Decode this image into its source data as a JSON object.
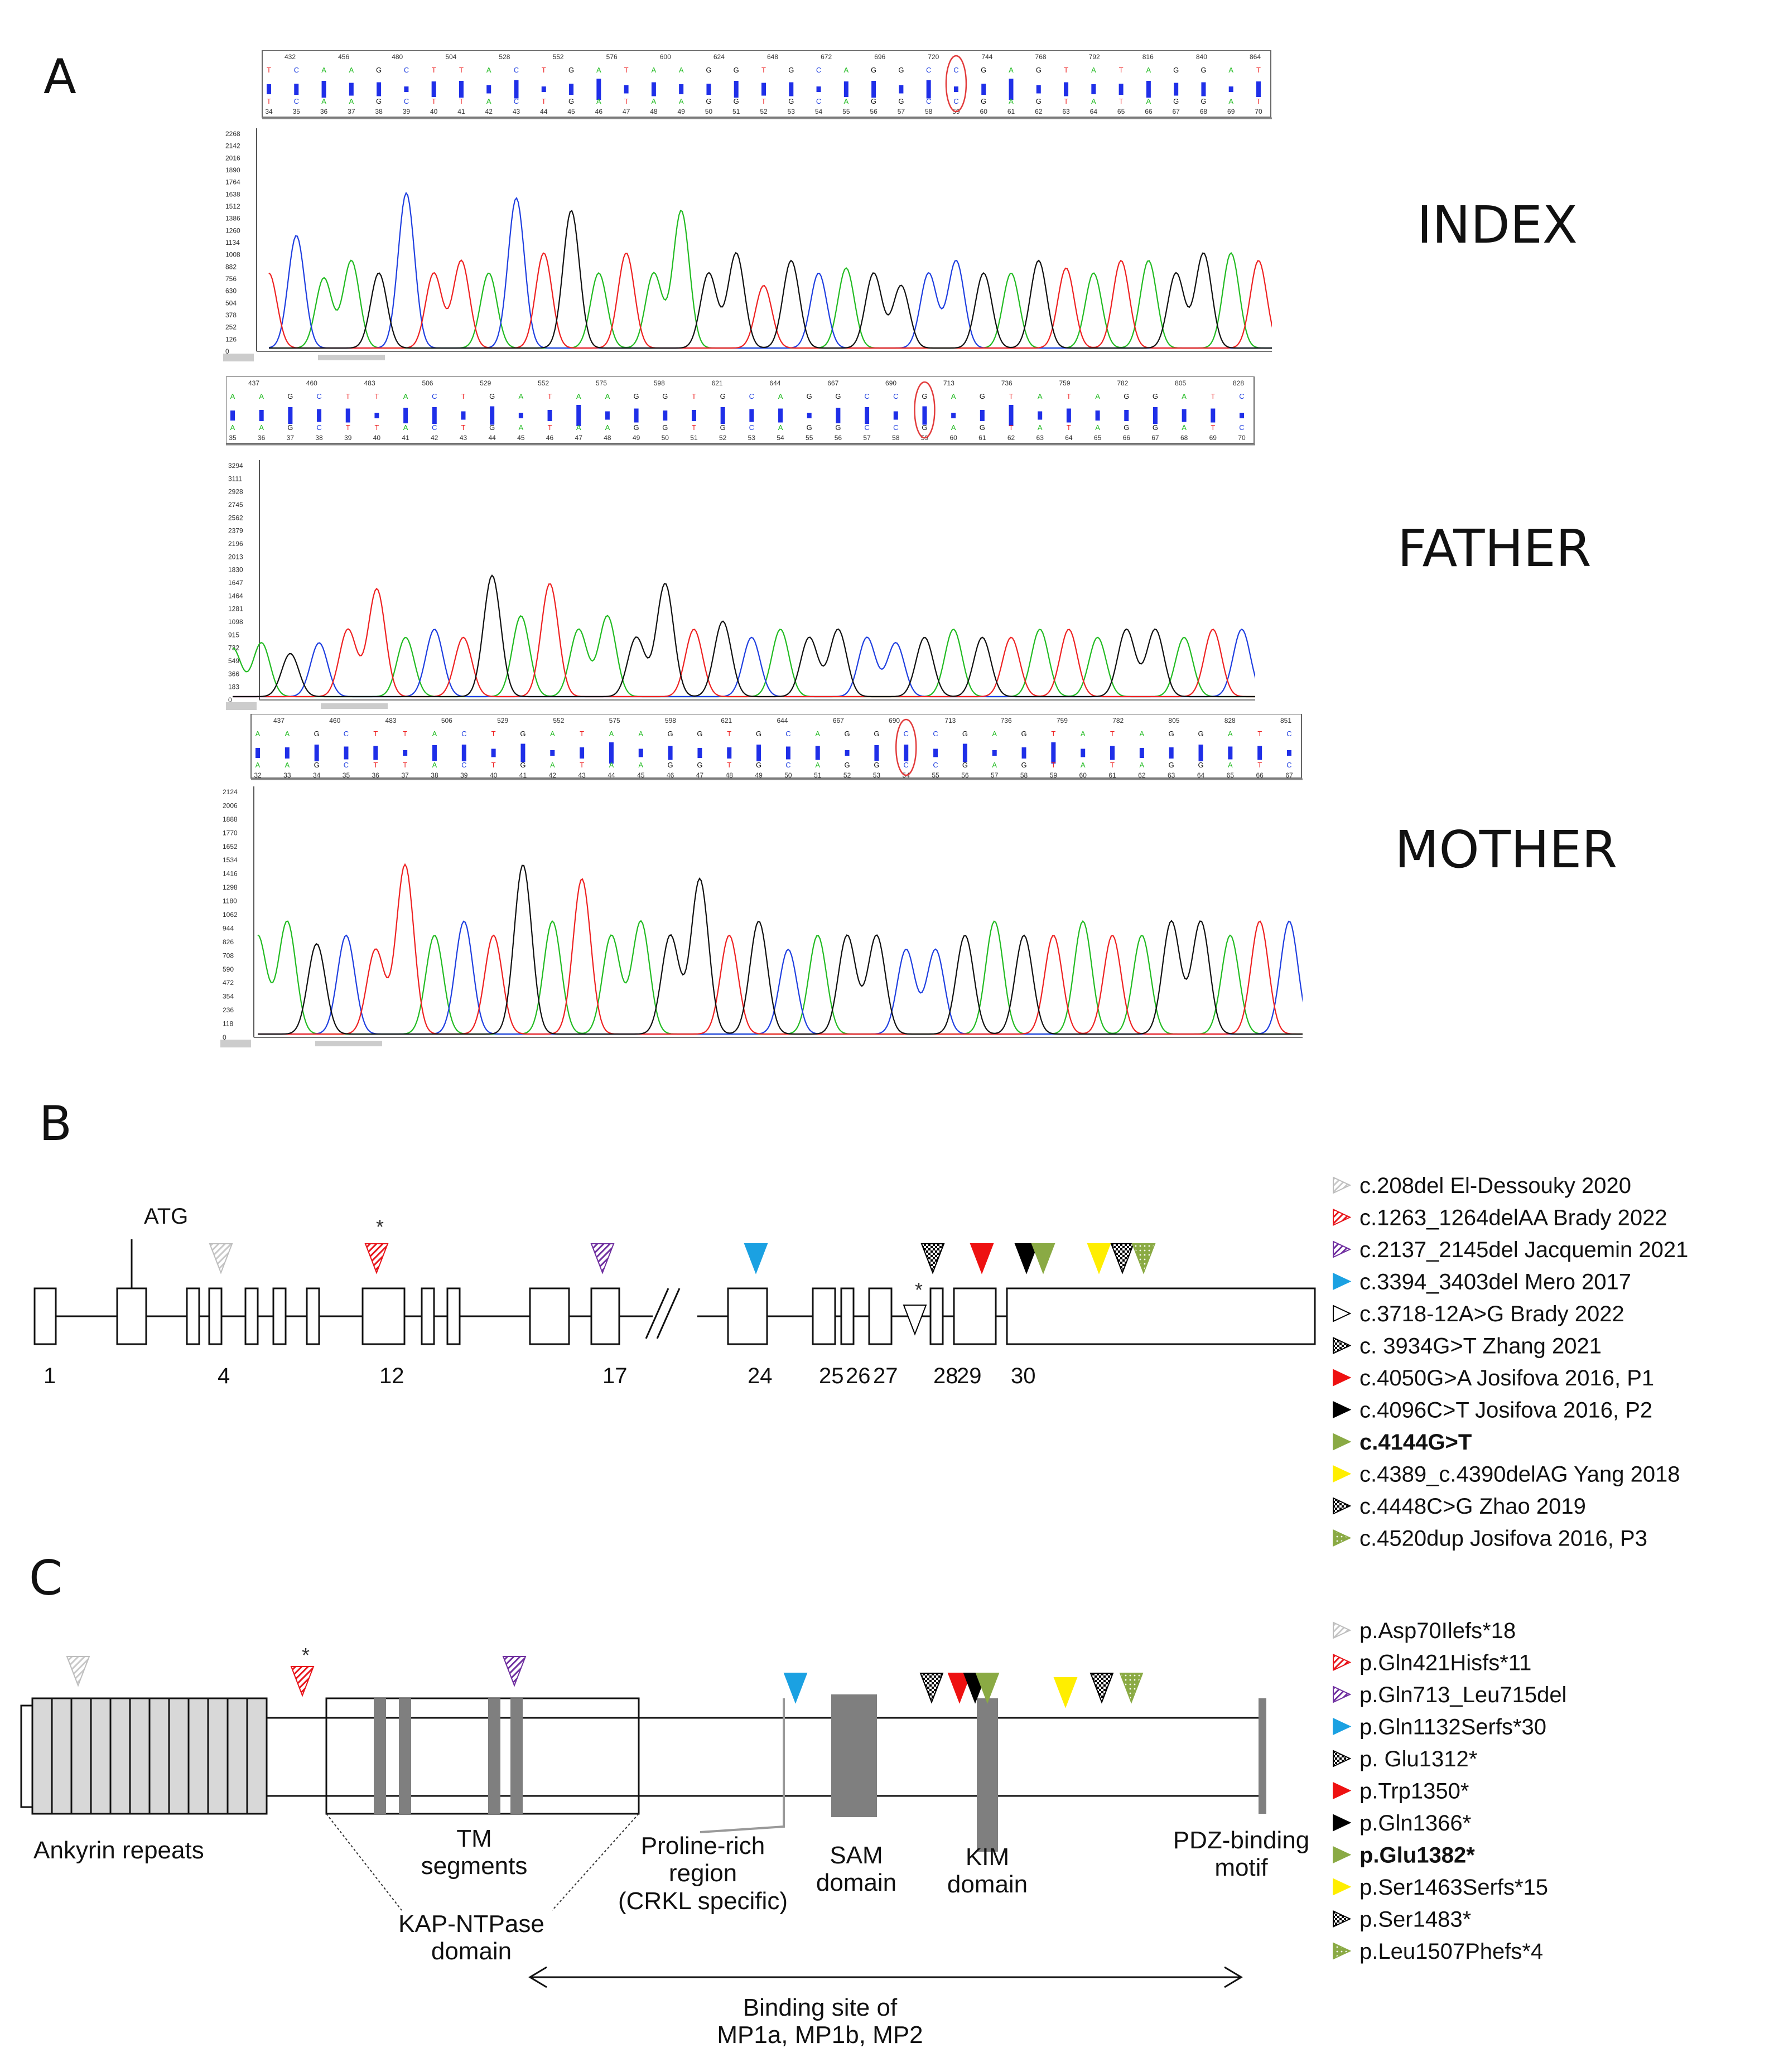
{
  "panels": {
    "a": "A",
    "b": "B",
    "c": "C"
  },
  "samples": [
    "INDEX",
    "FATHER",
    "MOTHER"
  ],
  "chromatograms": [
    {
      "name": "INDEX",
      "positions": [
        "432",
        "456",
        "480",
        "504",
        "528",
        "552",
        "576",
        "600",
        "624",
        "648",
        "672",
        "696",
        "720",
        "744",
        "768",
        "792",
        "816",
        "840",
        "864"
      ],
      "bases": "TCAAGCTTACTGATAAGGTGCAGGCCGAGTATAGGAT",
      "numbers": [
        "34",
        "35",
        "36",
        "37",
        "38",
        "39",
        "40",
        "41",
        "42",
        "43",
        "44",
        "45",
        "46",
        "47",
        "48",
        "49",
        "50",
        "51",
        "52",
        "53",
        "54",
        "55",
        "56",
        "57",
        "58",
        "59",
        "60",
        "61",
        "62",
        "63",
        "64",
        "65",
        "66",
        "67",
        "68",
        "69",
        "70"
      ],
      "yticks": [
        "2268",
        "2142",
        "2016",
        "1890",
        "1764",
        "1638",
        "1512",
        "1386",
        "1260",
        "1134",
        "1008",
        "882",
        "756",
        "630",
        "504",
        "378",
        "252",
        "126",
        "0"
      ]
    },
    {
      "name": "FATHER",
      "positions": [
        "437",
        "460",
        "483",
        "506",
        "529",
        "552",
        "575",
        "598",
        "621",
        "644",
        "667",
        "690",
        "713",
        "736",
        "759",
        "782",
        "805",
        "828"
      ],
      "bases": "AAGCTTACTGATAAGGTGCAGGCCGAGTATAGGATC",
      "numbers": [
        "35",
        "36",
        "37",
        "38",
        "39",
        "40",
        "41",
        "42",
        "43",
        "44",
        "45",
        "46",
        "47",
        "48",
        "49",
        "50",
        "51",
        "52",
        "53",
        "54",
        "55",
        "56",
        "57",
        "58",
        "59",
        "60",
        "61",
        "62",
        "63",
        "64",
        "65",
        "66",
        "67",
        "68",
        "69",
        "70"
      ],
      "yticks": [
        "3294",
        "3111",
        "2928",
        "2745",
        "2562",
        "2379",
        "2196",
        "2013",
        "1830",
        "1647",
        "1464",
        "1281",
        "1098",
        "915",
        "732",
        "549",
        "366",
        "183",
        "0"
      ]
    },
    {
      "name": "MOTHER",
      "positions": [
        "437",
        "460",
        "483",
        "506",
        "529",
        "552",
        "575",
        "598",
        "621",
        "644",
        "667",
        "690",
        "713",
        "736",
        "759",
        "782",
        "805",
        "828",
        "851"
      ],
      "bases": "AAGCTTACTGATAAGGTGCAGGCCGAGTATAGGATC",
      "numbers": [
        "32",
        "33",
        "34",
        "35",
        "36",
        "37",
        "38",
        "39",
        "40",
        "41",
        "42",
        "43",
        "44",
        "45",
        "46",
        "47",
        "48",
        "49",
        "50",
        "51",
        "52",
        "53",
        "54",
        "55",
        "56",
        "57",
        "58",
        "59",
        "60",
        "61",
        "62",
        "63",
        "64",
        "65",
        "66",
        "67"
      ],
      "yticks": [
        "2124",
        "2006",
        "1888",
        "1770",
        "1652",
        "1534",
        "1416",
        "1298",
        "1180",
        "1062",
        "944",
        "826",
        "708",
        "590",
        "472",
        "354",
        "236",
        "118",
        "0"
      ]
    }
  ],
  "gene": {
    "atg": "ATG",
    "exon_numbers": [
      "1",
      "4",
      "12",
      "17",
      "24",
      "25",
      "26",
      "27",
      "28",
      "29",
      "30"
    ],
    "asterisk": "*"
  },
  "legend_b": [
    {
      "text": "c.208del El-Dessouky 2020",
      "color": "#d9d9d9",
      "style": "hatch",
      "bold": false
    },
    {
      "text": "c.1263_1264delAA Brady 2022",
      "color": "#e8151b",
      "style": "hatch",
      "bold": false
    },
    {
      "text": "c.2137_2145del Jacquemin 2021",
      "color": "#7030a0",
      "style": "hatch",
      "bold": false
    },
    {
      "text": "c.3394_3403del Mero 2017",
      "color": "#1ba1e2",
      "style": "solid",
      "bold": false
    },
    {
      "text": "c.3718-12A>G Brady 2022",
      "color": "#000000",
      "style": "outline",
      "bold": false
    },
    {
      "text": "c. 3934G>T Zhang 2021",
      "color": "#000000",
      "style": "check",
      "bold": false
    },
    {
      "text": "c.4050G>A Josifova 2016, P1",
      "color": "#ee1111",
      "style": "solid",
      "bold": false
    },
    {
      "text": "c.4096C>T Josifova 2016, P2",
      "color": "#000000",
      "style": "solid",
      "bold": false
    },
    {
      "text": "c.4144G>T",
      "color": "#8aaa44",
      "style": "solid",
      "bold": true
    },
    {
      "text": "c.4389_c.4390delAG Yang 2018",
      "color": "#ffee00",
      "style": "solid",
      "bold": false
    },
    {
      "text": "c.4448C>G Zhao 2019",
      "color": "#000000",
      "style": "check",
      "bold": false
    },
    {
      "text": "c.4520dup Josifova 2016, P3",
      "color": "#8aaa44",
      "style": "dots",
      "bold": false
    }
  ],
  "legend_c": [
    {
      "text": "p.Asp70Ilefs*18",
      "color": "#d9d9d9",
      "style": "hatch",
      "bold": false
    },
    {
      "text": "p.Gln421Hisfs*11",
      "color": "#e8151b",
      "style": "hatch",
      "bold": false
    },
    {
      "text": "p.Gln713_Leu715del",
      "color": "#7030a0",
      "style": "hatch",
      "bold": false
    },
    {
      "text": "p.Gln1132Serfs*30",
      "color": "#1ba1e2",
      "style": "solid",
      "bold": false
    },
    {
      "text": "p. Glu1312*",
      "color": "#000000",
      "style": "check",
      "bold": false
    },
    {
      "text": "p.Trp1350*",
      "color": "#ee1111",
      "style": "solid",
      "bold": false
    },
    {
      "text": "p.Gln1366*",
      "color": "#000000",
      "style": "solid",
      "bold": false
    },
    {
      "text": "p.Glu1382*",
      "color": "#8aaa44",
      "style": "solid",
      "bold": true
    },
    {
      "text": "p.Ser1463Serfs*15",
      "color": "#ffee00",
      "style": "solid",
      "bold": false
    },
    {
      "text": "p.Ser1483*",
      "color": "#000000",
      "style": "check",
      "bold": false
    },
    {
      "text": "p.Leu1507Phefs*4",
      "color": "#8aaa44",
      "style": "dots",
      "bold": false
    }
  ],
  "protein": {
    "ankyrin": "Ankyrin repeats",
    "tm": "TM\nsegments",
    "kap": "KAP-NTPase\ndomain",
    "proline": "Proline-rich\nregion\n(CRKL specific)",
    "sam": "SAM\ndomain",
    "kim": "KIM\ndomain",
    "pdz": "PDZ-binding\nmotif",
    "binding": "Binding site of\nMP1a, MP1b, MP2"
  }
}
